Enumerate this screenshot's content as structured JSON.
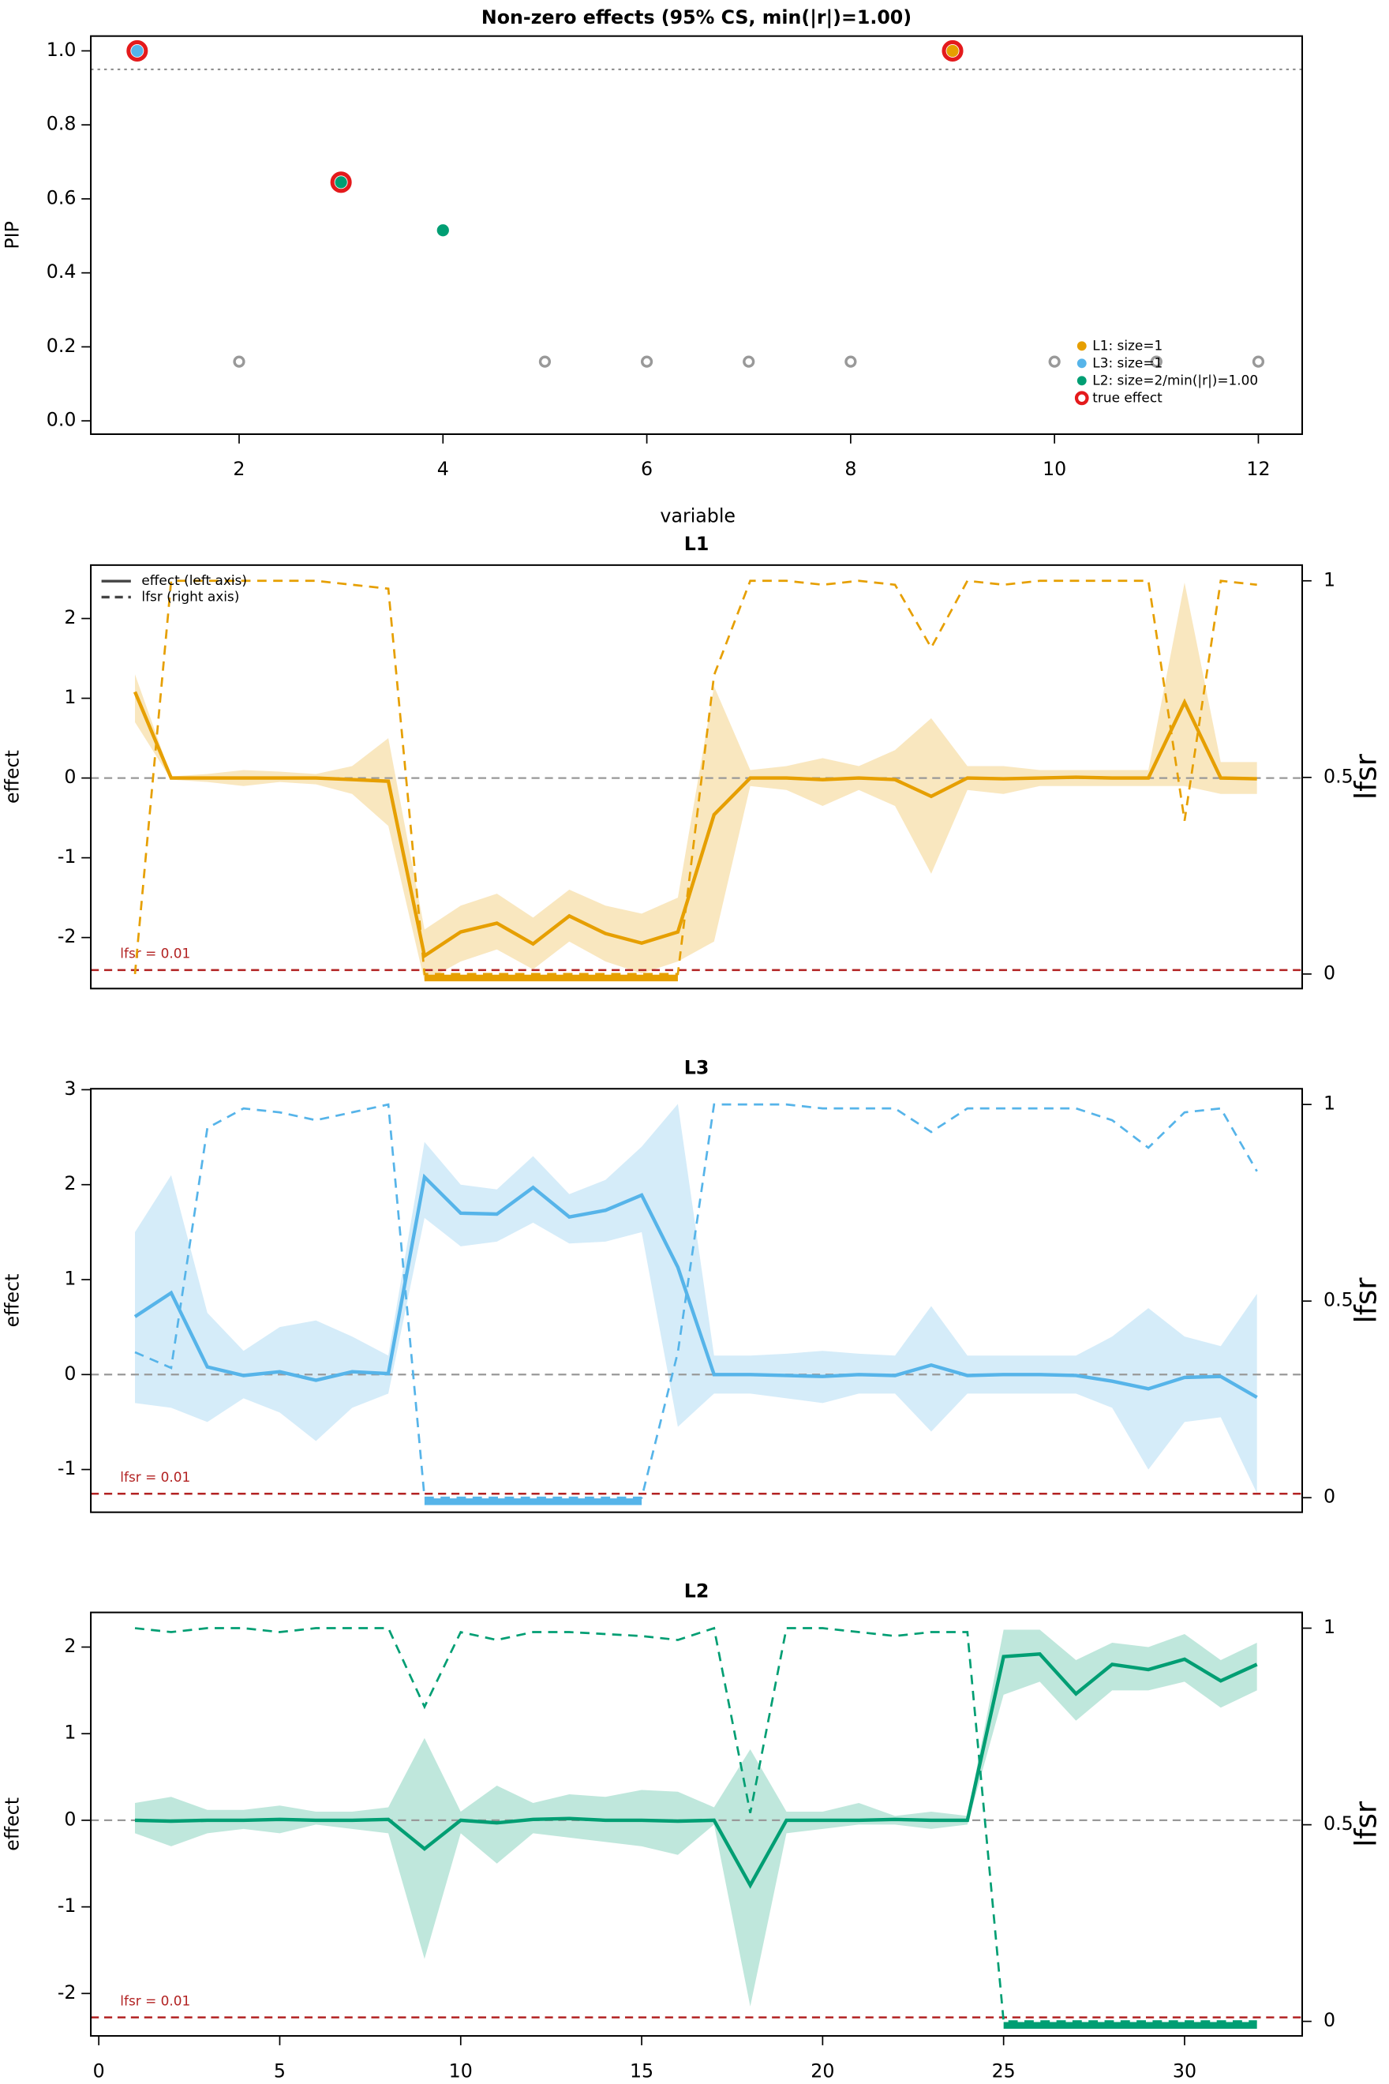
{
  "chart_data": [
    {
      "type": "scatter",
      "title": "Non-zero effects (95% CS, min(|r|)=1.00)",
      "xlabel": "variable",
      "ylabel": "PIP",
      "xlim": [
        0.545,
        12.43
      ],
      "xticks": [
        2,
        4,
        6,
        8,
        10,
        12
      ],
      "ylim": [
        -0.036,
        1.04
      ],
      "yticks": [
        {
          "value": 0,
          "label": "0.0"
        },
        0.2,
        0.4,
        0.6,
        0.8,
        {
          "value": 1,
          "label": "1.0"
        }
      ],
      "hline": 0.95,
      "legend": "bottom-right",
      "series": [
        {
          "name": "true effect",
          "color": "#e41a1c",
          "marker": "ring",
          "x": [
            1,
            3,
            9
          ],
          "values": [
            1.0,
            0.645,
            1.0
          ]
        },
        {
          "name": "L1: size=1",
          "color": "#e69f00",
          "x": [
            9
          ],
          "values": [
            1.0
          ]
        },
        {
          "name": "L3: size=1",
          "color": "#56b4e9",
          "x": [
            1
          ],
          "values": [
            1.0
          ]
        },
        {
          "name": "L2: size=2/min(|r|)=1.00",
          "color": "#009e73",
          "x": [
            3,
            4
          ],
          "values": [
            0.645,
            0.515
          ]
        },
        {
          "color": "#999999",
          "marker": "hollow",
          "x": [
            2,
            5,
            6,
            7,
            8,
            10,
            11,
            12
          ],
          "values": [
            0.16,
            0.16,
            0.16,
            0.16,
            0.16,
            0.16,
            0.16,
            0.16
          ]
        }
      ]
    },
    {
      "type": "line",
      "title": "L1",
      "ylabel": "effect",
      "y2label": "lfsr",
      "color": "#e69f00",
      "x": [
        1,
        2,
        3,
        4,
        5,
        6,
        7,
        8,
        9,
        10,
        11,
        12,
        13,
        14,
        15,
        16,
        17,
        18,
        19,
        20,
        21,
        22,
        23,
        24,
        25,
        26,
        27,
        28,
        29,
        30,
        31,
        32
      ],
      "xlim": [
        -0.22,
        33.25
      ],
      "ylim": [
        -2.64,
        2.67
      ],
      "yticks": [
        -2,
        -1,
        0,
        1,
        2
      ],
      "y2lim": [
        -0.037,
        1.04
      ],
      "y2ticks": [
        0,
        0.5,
        1
      ],
      "ref_line": 0,
      "threshold": 0.01,
      "threshold_label": "lfsr = 0.01",
      "cs": [
        9,
        16
      ],
      "legend": "top-left",
      "series": [
        {
          "name": "effect (left axis)",
          "values": [
            1.08,
            0,
            0,
            0,
            0,
            0,
            -0.02,
            -0.04,
            -2.23,
            -1.93,
            -1.82,
            -2.08,
            -1.73,
            -1.95,
            -2.07,
            -1.93,
            -0.46,
            0,
            0,
            -0.02,
            0,
            -0.02,
            -0.23,
            0,
            -0.01,
            0,
            0.01,
            0,
            0,
            0.95,
            0,
            -0.01
          ],
          "lower": [
            0.7,
            -0.02,
            -0.05,
            -0.1,
            -0.05,
            -0.08,
            -0.2,
            -0.6,
            -2.55,
            -2.3,
            -2.15,
            -2.4,
            -2.05,
            -2.3,
            -2.45,
            -2.3,
            -2.05,
            -0.1,
            -0.15,
            -0.35,
            -0.15,
            -0.35,
            -1.2,
            -0.15,
            -0.2,
            -0.1,
            -0.1,
            -0.1,
            -0.1,
            -0.1,
            -0.2,
            -0.2
          ],
          "upper": [
            1.3,
            0.02,
            0.05,
            0.1,
            0.08,
            0.05,
            0.15,
            0.5,
            -1.9,
            -1.6,
            -1.45,
            -1.75,
            -1.4,
            -1.6,
            -1.7,
            -1.5,
            1.15,
            0.1,
            0.15,
            0.25,
            0.15,
            0.35,
            0.75,
            0.15,
            0.15,
            0.1,
            0.1,
            0.1,
            0.1,
            2.45,
            0.2,
            0.2
          ]
        },
        {
          "name": "lfsr (right axis)",
          "axis": "y2",
          "dashed": true,
          "values": [
            0,
            1.0,
            1.0,
            1.0,
            1.0,
            1.0,
            0.99,
            0.98,
            0,
            0,
            0,
            0,
            0,
            0,
            0,
            0,
            0.76,
            1.0,
            1.0,
            0.99,
            1.0,
            0.99,
            0.83,
            1.0,
            0.99,
            1.0,
            1.0,
            1.0,
            1.0,
            0.39,
            1.0,
            0.99
          ]
        }
      ]
    },
    {
      "type": "line",
      "title": "L3",
      "ylabel": "effect",
      "y2label": "lfsr",
      "color": "#56b4e9",
      "x": [
        1,
        2,
        3,
        4,
        5,
        6,
        7,
        8,
        9,
        10,
        11,
        12,
        13,
        14,
        15,
        16,
        17,
        18,
        19,
        20,
        21,
        22,
        23,
        24,
        25,
        26,
        27,
        28,
        29,
        30,
        31,
        32
      ],
      "xlim": [
        -0.22,
        33.25
      ],
      "ylim": [
        -1.45,
        3.01
      ],
      "yticks": [
        -1,
        0,
        1,
        2,
        3
      ],
      "y2lim": [
        -0.037,
        1.04
      ],
      "y2ticks": [
        0,
        0.5,
        1
      ],
      "ref_line": 0,
      "threshold": 0.01,
      "threshold_label": "lfsr = 0.01",
      "cs": [
        9,
        15
      ],
      "series": [
        {
          "values": [
            0.61,
            0.86,
            0.08,
            -0.01,
            0.03,
            -0.06,
            0.03,
            0.01,
            2.08,
            1.7,
            1.69,
            1.97,
            1.66,
            1.73,
            1.89,
            1.13,
            0,
            0,
            -0.01,
            -0.02,
            0,
            -0.01,
            0.1,
            -0.01,
            0,
            0,
            -0.01,
            -0.07,
            -0.15,
            -0.03,
            -0.02,
            -0.24
          ],
          "lower": [
            -0.3,
            -0.35,
            -0.5,
            -0.25,
            -0.4,
            -0.7,
            -0.35,
            -0.2,
            1.65,
            1.35,
            1.4,
            1.6,
            1.38,
            1.4,
            1.5,
            -0.55,
            -0.2,
            -0.2,
            -0.25,
            -0.3,
            -0.2,
            -0.2,
            -0.6,
            -0.2,
            -0.2,
            -0.2,
            -0.2,
            -0.35,
            -1.0,
            -0.5,
            -0.45,
            -1.25
          ],
          "upper": [
            1.5,
            2.1,
            0.65,
            0.25,
            0.5,
            0.57,
            0.4,
            0.2,
            2.45,
            2.0,
            1.95,
            2.3,
            1.9,
            2.05,
            2.4,
            2.85,
            0.2,
            0.2,
            0.22,
            0.25,
            0.22,
            0.2,
            0.72,
            0.2,
            0.2,
            0.2,
            0.2,
            0.4,
            0.7,
            0.4,
            0.3,
            0.85
          ]
        },
        {
          "axis": "y2",
          "dashed": true,
          "values": [
            0.37,
            0.33,
            0.94,
            0.99,
            0.98,
            0.96,
            0.98,
            1.0,
            0,
            0,
            0,
            0,
            0,
            0,
            0,
            0.37,
            1.0,
            1.0,
            1.0,
            0.99,
            0.99,
            0.99,
            0.93,
            0.99,
            0.99,
            0.99,
            0.99,
            0.96,
            0.89,
            0.98,
            0.99,
            0.83
          ]
        }
      ]
    },
    {
      "type": "line",
      "title": "L2",
      "ylabel": "effect",
      "y2label": "lfsr",
      "color": "#009e73",
      "x": [
        1,
        2,
        3,
        4,
        5,
        6,
        7,
        8,
        9,
        10,
        11,
        12,
        13,
        14,
        15,
        16,
        17,
        18,
        19,
        20,
        21,
        22,
        23,
        24,
        25,
        26,
        27,
        28,
        29,
        30,
        31,
        32
      ],
      "xlim": [
        -0.22,
        33.25
      ],
      "xticks": [
        0,
        5,
        10,
        15,
        20,
        25,
        30
      ],
      "ylim": [
        -2.49,
        2.4
      ],
      "yticks": [
        -2,
        -1,
        0,
        1,
        2
      ],
      "y2lim": [
        -0.037,
        1.04
      ],
      "y2ticks": [
        0,
        0.5,
        1
      ],
      "ref_line": 0,
      "threshold": 0.01,
      "threshold_label": "lfsr = 0.01",
      "cs": [
        25,
        32
      ],
      "series": [
        {
          "values": [
            0,
            -0.01,
            0,
            0,
            0.01,
            0,
            0,
            0.01,
            -0.33,
            0,
            -0.03,
            0.01,
            0.02,
            0,
            0,
            -0.01,
            0,
            -0.75,
            0,
            0,
            0,
            0.01,
            0,
            0,
            1.89,
            1.92,
            1.46,
            1.8,
            1.74,
            1.86,
            1.61,
            1.8
          ],
          "lower": [
            -0.15,
            -0.3,
            -0.15,
            -0.1,
            -0.15,
            -0.05,
            -0.1,
            -0.15,
            -1.6,
            -0.15,
            -0.5,
            -0.15,
            -0.2,
            -0.25,
            -0.3,
            -0.4,
            -0.05,
            -2.15,
            -0.15,
            -0.1,
            -0.05,
            -0.05,
            -0.1,
            -0.05,
            1.45,
            1.6,
            1.15,
            1.5,
            1.5,
            1.6,
            1.3,
            1.5
          ],
          "upper": [
            0.2,
            0.27,
            0.12,
            0.12,
            0.17,
            0.1,
            0.1,
            0.15,
            0.95,
            0.1,
            0.4,
            0.2,
            0.3,
            0.27,
            0.35,
            0.33,
            0.15,
            0.82,
            0.1,
            0.1,
            0.2,
            0.05,
            0.1,
            0.05,
            2.2,
            2.2,
            1.85,
            2.05,
            2.0,
            2.15,
            1.85,
            2.05
          ]
        },
        {
          "axis": "y2",
          "dashed": true,
          "values": [
            1.0,
            0.99,
            1.0,
            1.0,
            0.99,
            1.0,
            1.0,
            1.0,
            0.8,
            0.99,
            0.97,
            0.99,
            0.99,
            0.985,
            0.98,
            0.97,
            1.0,
            0.53,
            1.0,
            1.0,
            0.99,
            0.98,
            0.99,
            0.99,
            0,
            0,
            0,
            0,
            0,
            0,
            0,
            0
          ]
        }
      ]
    }
  ]
}
